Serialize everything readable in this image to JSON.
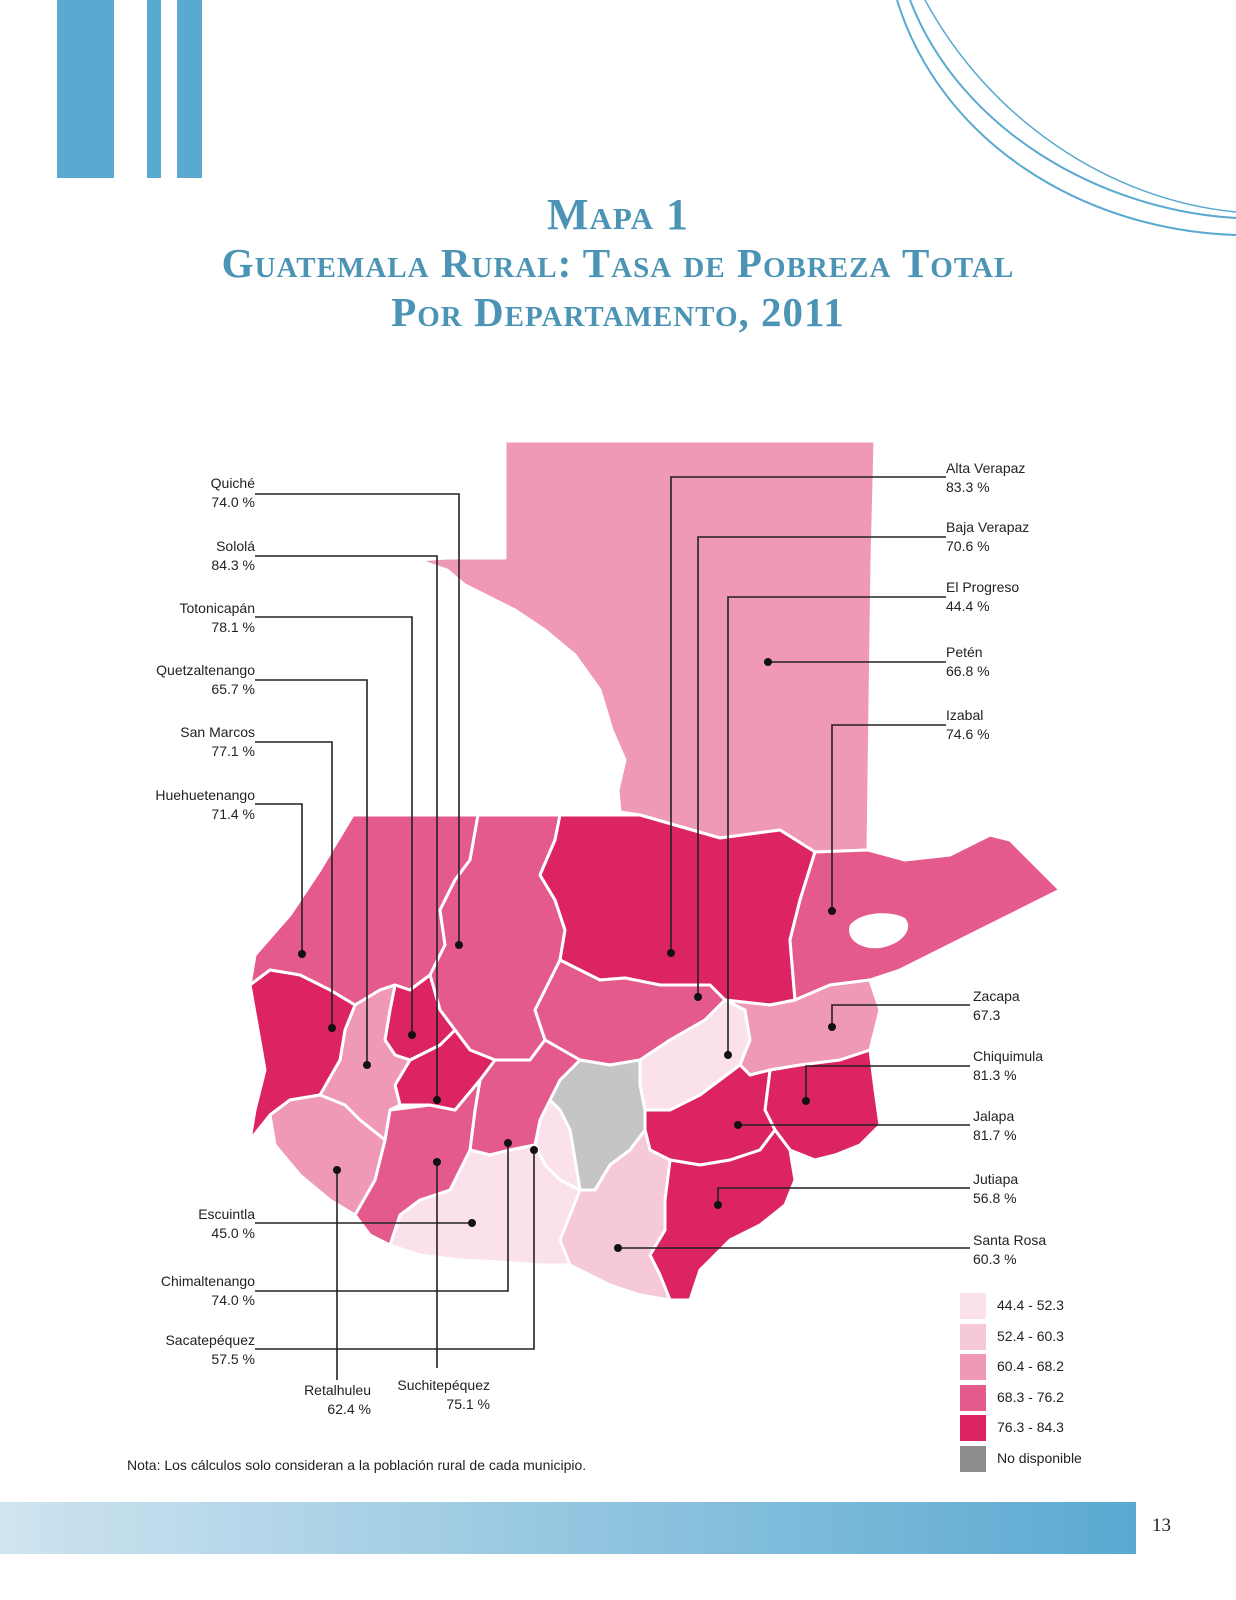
{
  "title": {
    "line1": "Mapa 1",
    "line2": "Guatemala Rural: Tasa de Pobreza Total",
    "line3": "Por Departamento, 2011"
  },
  "departments": {
    "quiche": {
      "name": "Quiché",
      "value": "74.0 %"
    },
    "solola": {
      "name": "Sololá",
      "value": "84.3 %"
    },
    "totonicapan": {
      "name": "Totonicapán",
      "value": "78.1 %"
    },
    "quetzaltenango": {
      "name": "Quetzaltenango",
      "value": "65.7 %"
    },
    "san_marcos": {
      "name": "San Marcos",
      "value": "77.1 %"
    },
    "huehuetenango": {
      "name": "Huehuetenango",
      "value": "71.4 %"
    },
    "escuintla": {
      "name": "Escuintla",
      "value": "45.0 %"
    },
    "chimaltenango": {
      "name": "Chimaltenango",
      "value": "74.0 %"
    },
    "sacatepequez": {
      "name": "Sacatepéquez",
      "value": "57.5 %"
    },
    "retalhuleu": {
      "name": "Retalhuleu",
      "value": "62.4 %"
    },
    "suchitepequez": {
      "name": "Suchitepéquez",
      "value": "75.1 %"
    },
    "alta_verapaz": {
      "name": "Alta Verapaz",
      "value": "83.3 %"
    },
    "baja_verapaz": {
      "name": "Baja Verapaz",
      "value": "70.6 %"
    },
    "el_progreso": {
      "name": "El Progreso",
      "value": "44.4 %"
    },
    "peten": {
      "name": "Petén",
      "value": "66.8 %"
    },
    "izabal": {
      "name": "Izabal",
      "value": "74.6 %"
    },
    "zacapa": {
      "name": "Zacapa",
      "value": "67.3"
    },
    "chiquimula": {
      "name": "Chiquimula",
      "value": "81.3 %"
    },
    "jalapa": {
      "name": "Jalapa",
      "value": "81.7 %"
    },
    "jutiapa": {
      "name": "Jutiapa",
      "value": "56.8 %"
    },
    "santa_rosa": {
      "name": "Santa Rosa",
      "value": "60.3 %"
    }
  },
  "legend": [
    {
      "label": "44.4 - 52.3",
      "color": "#fae1ec"
    },
    {
      "label": "52.4 - 60.3",
      "color": "#f6c9da"
    },
    {
      "label": "60.4 - 68.2",
      "color": "#ef98b7"
    },
    {
      "label": "68.3 - 76.2",
      "color": "#e55a8d"
    },
    {
      "label": "76.3 - 84.3",
      "color": "#dc2464"
    },
    {
      "label": "No disponible",
      "color": "#8c8c8e"
    }
  ],
  "guatemala_city_color": "#c5c5c7",
  "note": "Nota: Los cálculos solo consideran a la población rural de cada municipio.",
  "page_number": "13",
  "accent_color": "#5aa9d1"
}
